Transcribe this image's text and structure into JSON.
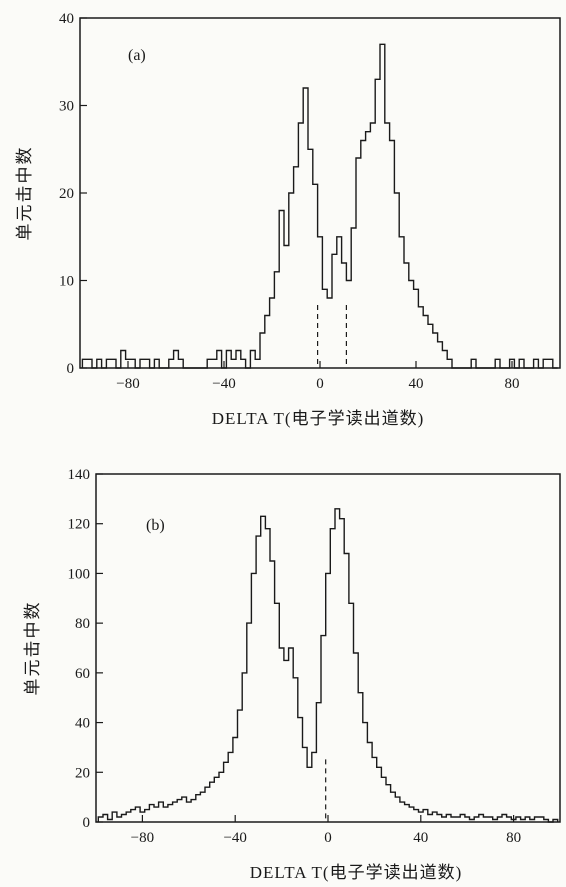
{
  "chart_data": [
    {
      "type": "histogram",
      "panel_label": "(a)",
      "xlabel": "DELTA T(电子学读出道数)",
      "ylabel": "单元击中数",
      "xlim": [
        -100,
        100
      ],
      "ylim": [
        0,
        40
      ],
      "xticks": [
        "-80",
        "-40",
        "0",
        "40",
        "80"
      ],
      "yticks": [
        "0",
        "10",
        "20",
        "30",
        "40"
      ],
      "dashed_markers": [
        -1,
        11
      ],
      "bins": {
        "x": [
          -98,
          -96,
          -94,
          -92,
          -90,
          -88,
          -86,
          -84,
          -82,
          -80,
          -78,
          -76,
          -74,
          -72,
          -70,
          -68,
          -66,
          -64,
          -62,
          -60,
          -58,
          -56,
          -54,
          -52,
          -50,
          -48,
          -46,
          -44,
          -42,
          -40,
          -38,
          -36,
          -34,
          -32,
          -30,
          -28,
          -26,
          -24,
          -22,
          -20,
          -18,
          -16,
          -14,
          -12,
          -10,
          -8,
          -6,
          -4,
          -2,
          0,
          2,
          4,
          6,
          8,
          10,
          12,
          14,
          16,
          18,
          20,
          22,
          24,
          26,
          28,
          30,
          32,
          34,
          36,
          38,
          40,
          42,
          44,
          46,
          48,
          50,
          52,
          54,
          56,
          58,
          60,
          62,
          64,
          66,
          68,
          70,
          72,
          74,
          76,
          78,
          80,
          82,
          84,
          86,
          88,
          90,
          92,
          94,
          96,
          98
        ],
        "counts": [
          1,
          1,
          0,
          1,
          0,
          1,
          1,
          0,
          2,
          1,
          1,
          0,
          1,
          1,
          0,
          1,
          0,
          0,
          1,
          2,
          1,
          0,
          0,
          0,
          0,
          0,
          1,
          1,
          2,
          0,
          2,
          1,
          2,
          1,
          0,
          2,
          1,
          4,
          6,
          8,
          11,
          18,
          14,
          20,
          23,
          28,
          32,
          25,
          21,
          15,
          9,
          8,
          13,
          15,
          12,
          10,
          16,
          24,
          26,
          27,
          28,
          33,
          37,
          28,
          26,
          20,
          15,
          12,
          10,
          9,
          7,
          6,
          5,
          4,
          3,
          2,
          1,
          0,
          0,
          0,
          0,
          1,
          0,
          0,
          0,
          0,
          1,
          0,
          0,
          1,
          0,
          1,
          0,
          0,
          1,
          0,
          1,
          1,
          0
        ]
      }
    },
    {
      "type": "histogram",
      "panel_label": "(b)",
      "xlabel": "DELTA T(电子学读出道数)",
      "ylabel": "单元击中数",
      "xlim": [
        -100,
        100
      ],
      "ylim": [
        0,
        140
      ],
      "xticks": [
        "-80",
        "-40",
        "0",
        "40",
        "80"
      ],
      "yticks": [
        "0",
        "20",
        "40",
        "60",
        "80",
        "100",
        "120",
        "140"
      ],
      "dashed_markers": [
        -1
      ],
      "bins": {
        "x": [
          -98,
          -96,
          -94,
          -92,
          -90,
          -88,
          -86,
          -84,
          -82,
          -80,
          -78,
          -76,
          -74,
          -72,
          -70,
          -68,
          -66,
          -64,
          -62,
          -60,
          -58,
          -56,
          -54,
          -52,
          -50,
          -48,
          -46,
          -44,
          -42,
          -40,
          -38,
          -36,
          -34,
          -32,
          -30,
          -28,
          -26,
          -24,
          -22,
          -20,
          -18,
          -16,
          -14,
          -12,
          -10,
          -8,
          -6,
          -4,
          -2,
          0,
          2,
          4,
          6,
          8,
          10,
          12,
          14,
          16,
          18,
          20,
          22,
          24,
          26,
          28,
          30,
          32,
          34,
          36,
          38,
          40,
          42,
          44,
          46,
          48,
          50,
          52,
          54,
          56,
          58,
          60,
          62,
          64,
          66,
          68,
          70,
          72,
          74,
          76,
          78,
          80,
          82,
          84,
          86,
          88,
          90,
          92,
          94,
          96,
          98
        ],
        "counts": [
          2,
          3,
          1,
          4,
          2,
          3,
          4,
          5,
          6,
          4,
          5,
          7,
          6,
          8,
          6,
          7,
          8,
          9,
          10,
          8,
          9,
          11,
          12,
          14,
          16,
          18,
          20,
          24,
          28,
          34,
          45,
          60,
          80,
          100,
          115,
          123,
          118,
          105,
          88,
          70,
          65,
          70,
          58,
          42,
          30,
          22,
          28,
          48,
          75,
          100,
          118,
          126,
          122,
          108,
          88,
          68,
          52,
          40,
          32,
          26,
          22,
          18,
          15,
          12,
          10,
          8,
          7,
          6,
          5,
          4,
          5,
          3,
          4,
          3,
          2,
          3,
          2,
          2,
          3,
          2,
          1,
          2,
          3,
          2,
          2,
          1,
          2,
          3,
          2,
          1,
          2,
          1,
          2,
          1,
          2,
          2,
          1,
          0,
          1
        ]
      }
    }
  ]
}
